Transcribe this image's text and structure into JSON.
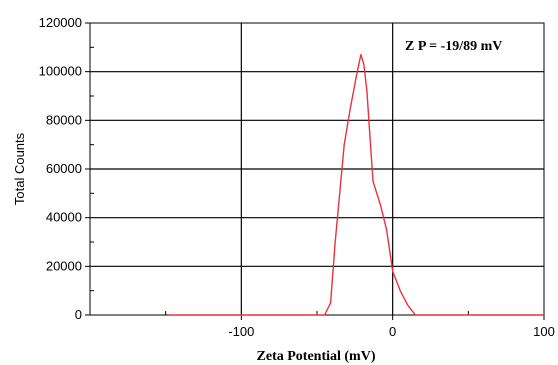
{
  "chart_data": {
    "type": "line",
    "title": "",
    "xlabel": "Zeta Potential (mV)",
    "ylabel": "Total Counts",
    "annotation": "Z P = -19/89 mV",
    "xlim": [
      -200,
      100
    ],
    "ylim": [
      0,
      120000
    ],
    "xticks": [
      -100,
      0,
      100
    ],
    "xtick_labels": [
      "-100",
      "0",
      "100"
    ],
    "yticks": [
      0,
      20000,
      40000,
      60000,
      80000,
      100000,
      120000
    ],
    "ytick_labels": [
      "0",
      "20000",
      "40000",
      "60000",
      "80000",
      "100000",
      "120000"
    ],
    "grid": true,
    "series": [
      {
        "color": "#e8323c",
        "x": [
          -148,
          -45,
          -41,
          -38,
          -32,
          -28,
          -24,
          -21,
          -19,
          -17,
          -13,
          -8,
          -4,
          0,
          5,
          10,
          15,
          100
        ],
        "y": [
          0,
          0,
          5000,
          30000,
          70000,
          85000,
          98000,
          107000,
          103000,
          92000,
          55000,
          45000,
          35000,
          18000,
          10000,
          4000,
          0,
          0
        ]
      }
    ]
  }
}
